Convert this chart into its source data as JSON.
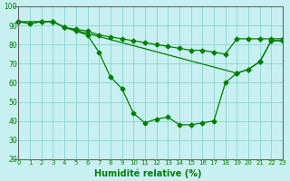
{
  "xlabel": "Humidité relative (%)",
  "bg_color": "#c8f0f0",
  "grid_color": "#7ecece",
  "line_color": "#008000",
  "ylim": [
    20,
    100
  ],
  "xlim": [
    -0.5,
    23
  ],
  "yticks": [
    20,
    30,
    40,
    50,
    60,
    70,
    80,
    90,
    100
  ],
  "xticks": [
    0,
    1,
    2,
    3,
    4,
    5,
    6,
    7,
    8,
    9,
    10,
    11,
    12,
    13,
    14,
    15,
    16,
    17,
    18,
    19,
    20,
    21,
    22,
    23
  ],
  "curve1_x": [
    0,
    1,
    2,
    3,
    4,
    5,
    6,
    7,
    8,
    9,
    10,
    11,
    12,
    13,
    14,
    15,
    16,
    17,
    18,
    19,
    20,
    21,
    22,
    23
  ],
  "curve1_y": [
    92,
    91,
    92,
    92,
    89,
    88,
    87,
    85,
    84,
    83,
    82,
    81,
    80,
    79,
    78,
    77,
    77,
    76,
    75,
    83,
    83,
    83,
    83,
    83
  ],
  "curve2_x": [
    0,
    1,
    2,
    3,
    4,
    5,
    6,
    7,
    8,
    9,
    10,
    11,
    12,
    13,
    14,
    15,
    16,
    17,
    18,
    19,
    20,
    21,
    22,
    23
  ],
  "curve2_y": [
    92,
    91,
    92,
    92,
    89,
    87,
    85,
    76,
    63,
    57,
    44,
    39,
    41,
    42,
    38,
    38,
    39,
    40,
    60,
    65,
    67,
    71,
    82,
    82
  ],
  "curve3_x": [
    0,
    3,
    4,
    19,
    20,
    21,
    22,
    23
  ],
  "curve3_y": [
    92,
    92,
    89,
    65,
    67,
    71,
    82,
    82
  ]
}
